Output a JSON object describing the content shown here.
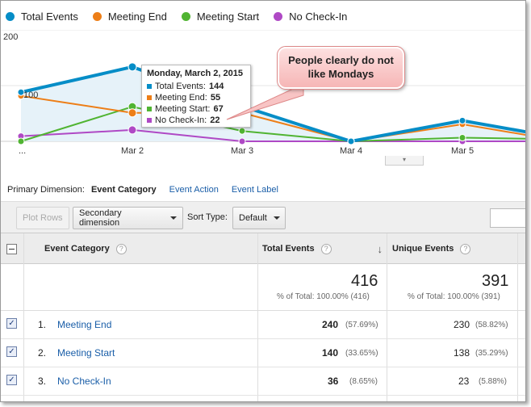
{
  "legend": [
    {
      "label": "Total Events",
      "color": "#058dc7"
    },
    {
      "label": "Meeting End",
      "color": "#ed7e17"
    },
    {
      "label": "Meeting Start",
      "color": "#50b432"
    },
    {
      "label": "No Check-In",
      "color": "#af49c5"
    }
  ],
  "chart_data": {
    "type": "line",
    "x": [
      "...",
      "Mar 2",
      "Mar 3",
      "Mar 4",
      "Mar 5",
      ""
    ],
    "y_ticks": [
      "200",
      "100"
    ],
    "ylim": [
      0,
      200
    ],
    "series": [
      {
        "name": "Total Events",
        "color": "#058dc7",
        "values": [
          95,
          144,
          68,
          0,
          40,
          18
        ]
      },
      {
        "name": "Meeting End",
        "color": "#ed7e17",
        "values": [
          88,
          55,
          55,
          0,
          33,
          12
        ]
      },
      {
        "name": "Meeting Start",
        "color": "#50b432",
        "values": [
          0,
          67,
          20,
          0,
          7,
          5
        ]
      },
      {
        "name": "No Check-In",
        "color": "#af49c5",
        "values": [
          10,
          22,
          0,
          0,
          0,
          0
        ]
      }
    ]
  },
  "tooltip": {
    "date": "Monday, March 2, 2015",
    "rows": [
      {
        "label": "Total Events:",
        "value": "144",
        "color": "#058dc7"
      },
      {
        "label": "Meeting End:",
        "value": "55",
        "color": "#ed7e17"
      },
      {
        "label": "Meeting Start:",
        "value": "67",
        "color": "#50b432"
      },
      {
        "label": "No Check-In:",
        "value": "22",
        "color": "#af49c5"
      }
    ]
  },
  "callout": {
    "text": "People clearly do not like Mondays"
  },
  "primary_dimension": {
    "label": "Primary Dimension:",
    "active": "Event Category",
    "options": [
      "Event Action",
      "Event Label"
    ]
  },
  "toolbar": {
    "plot_rows": "Plot Rows",
    "secondary_dimension": "Secondary dimension",
    "sort_type_label": "Sort Type:",
    "sort_type_value": "Default"
  },
  "table": {
    "headers": {
      "category": "Event Category",
      "total": "Total Events",
      "unique": "Unique Events",
      "help": "?",
      "sort_arrow": "↓"
    },
    "totals": {
      "total": "416",
      "total_pct": "% of Total: 100.00% (416)",
      "unique": "391",
      "unique_pct": "% of Total: 100.00% (391)"
    },
    "rows": [
      {
        "index": "1.",
        "category": "Meeting End",
        "total": "240",
        "total_pct": "(57.69%)",
        "unique": "230",
        "unique_pct": "(58.82%)"
      },
      {
        "index": "2.",
        "category": "Meeting Start",
        "total": "140",
        "total_pct": "(33.65%)",
        "unique": "138",
        "unique_pct": "(35.29%)"
      },
      {
        "index": "3.",
        "category": "No Check-In",
        "total": "36",
        "total_pct": "(8.65%)",
        "unique": "23",
        "unique_pct": "(5.88%)"
      }
    ]
  }
}
